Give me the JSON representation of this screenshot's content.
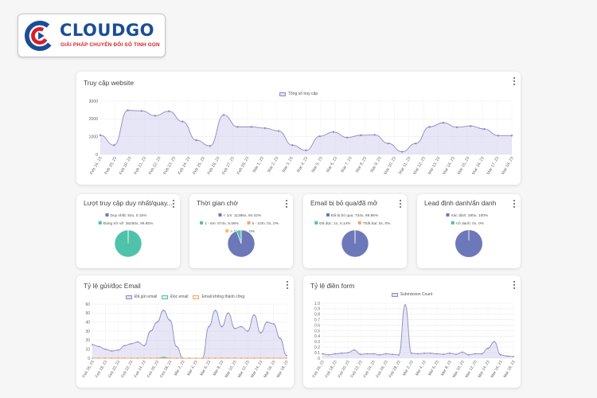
{
  "brand": {
    "name": "CLOUDGO",
    "tagline": "GIẢI PHÁP CHUYỂN ĐỔI SỐ TINH GỌN",
    "primary_color": "#1b4d96",
    "accent_color": "#d61f28"
  },
  "colors": {
    "series_fill": "rgba(200,200,234,0.55)",
    "series_line": "#8c8cc4",
    "pie_blue": "#6d78ba",
    "pie_teal": "#4fc3a9",
    "pie_orange": "#f5a86b"
  },
  "website": {
    "title": "Truy cập website",
    "menu_icon": "more-vertical-icon",
    "chart_data": {
      "type": "line",
      "title": "",
      "legend": [
        "Tổng số truy cập"
      ],
      "ylim": [
        0,
        3000
      ],
      "yticks": [
        0,
        1000,
        2000,
        3000
      ],
      "x": [
        "Feb 16, 23",
        "Feb 17, 23",
        "Feb 18, 23",
        "Feb 19, 23",
        "Feb 20, 23",
        "Feb 21, 23",
        "Feb 22, 23",
        "Feb 23, 23",
        "Feb 24, 23",
        "Feb 25, 23",
        "Feb 26, 23",
        "Feb 27, 23",
        "Feb 28, 23",
        "Mar 1, 23",
        "Mar 2, 23",
        "Mar 3, 23",
        "Mar 4, 23",
        "Mar 5, 23",
        "Mar 6, 23",
        "Mar 7, 23",
        "Mar 8, 23",
        "Mar 9, 23",
        "Mar 10, 23",
        "Mar 11, 23",
        "Mar 12, 23",
        "Mar 13, 23",
        "Mar 14, 23",
        "Mar 15, 23",
        "Mar 16, 23",
        "Mar 17, 23",
        "Mar 18, 23"
      ],
      "xticks": [
        "Feb 16, 23",
        "Feb 18, 23",
        "Feb 20, 23",
        "Feb 21, 23",
        "Feb 22, 23",
        "Feb 23, 23",
        "Feb 24, 23",
        "Feb 25, 23",
        "Feb 26, 23",
        "Feb 27, 23",
        "Feb 28, 23",
        "Mar 1, 23",
        "Mar 2, 23",
        "Mar 3, 23",
        "Mar 4, 23",
        "Mar 5, 23",
        "Mar 6, 23",
        "Mar 7, 23",
        "Mar 8, 23",
        "Mar 9, 23",
        "Mar 10, 23",
        "Mar 11, 23",
        "Mar 12, 23",
        "Mar 13, 23",
        "Mar 14, 23",
        "Mar 15, 23",
        "Mar 16, 23",
        "Mar 17, 23",
        "Mar 18, 23"
      ],
      "series": [
        {
          "name": "Tổng số truy cập",
          "values": [
            1080,
            520,
            2480,
            2450,
            2180,
            2430,
            1850,
            800,
            480,
            2220,
            1550,
            1550,
            1480,
            1320,
            520,
            230,
            1020,
            1260,
            950,
            1080,
            1100,
            620,
            150,
            620,
            1550,
            1780,
            1530,
            1600,
            1430,
            1060,
            1060
          ]
        }
      ]
    }
  },
  "summary_cards": [
    {
      "title": "Lượt truy cập duy nhất/quay...",
      "legend": [
        {
          "label": "Duy nhất: 54x, 0.15%",
          "color": "#6d78ba"
        },
        {
          "label": "Đang trở về: 36250x, 99.85%",
          "color": "#4fc3a9"
        }
      ],
      "chart_data": {
        "type": "pie",
        "labels": [
          "Duy nhất",
          "Đang trở về"
        ],
        "values": [
          54,
          36250
        ],
        "colors": [
          "#6d78ba",
          "#4fc3a9"
        ]
      }
    },
    {
      "title": "Thời gian chờ",
      "legend": [
        {
          "label": "< 1m: 11396x, 94.42%",
          "color": "#6d78ba"
        },
        {
          "label": "1 - 5m: 674x, 5.58%",
          "color": "#4fc3a9"
        },
        {
          "label": "5 - 10m: 0x, 0%",
          "color": "#f5a86b"
        },
        {
          "label": "> 10m: 0x, 0%",
          "color": "#f5c26b"
        }
      ],
      "chart_data": {
        "type": "pie",
        "labels": [
          "< 1m",
          "1 - 5m",
          "5 - 10m",
          "> 10m"
        ],
        "values": [
          11396,
          674,
          0,
          0
        ],
        "colors": [
          "#6d78ba",
          "#4fc3a9",
          "#f5a86b",
          "#f5c26b"
        ]
      }
    },
    {
      "title": "Email bị bỏ qua/đã mở",
      "legend": [
        {
          "label": "Đã bị bỏ qua: 734x, 99.86%",
          "color": "#6d78ba"
        },
        {
          "label": "Đã đọc: 1x, 0.14%",
          "color": "#4fc3a9"
        },
        {
          "label": "Thất bại: 0x, 0%",
          "color": "#f5a86b"
        }
      ],
      "chart_data": {
        "type": "pie",
        "labels": [
          "Đã bị bỏ qua",
          "Đã đọc",
          "Thất bại"
        ],
        "values": [
          734,
          1,
          0
        ],
        "colors": [
          "#6d78ba",
          "#4fc3a9",
          "#f5a86b"
        ]
      }
    },
    {
      "title": "Lead định danh/ẩn danh",
      "legend": [
        {
          "label": "Xác định: 280x, 100%",
          "color": "#6d78ba"
        },
        {
          "label": "Vô danh: 0x, 0%",
          "color": "#4fc3a9"
        }
      ],
      "chart_data": {
        "type": "pie",
        "labels": [
          "Xác định",
          "Vô danh"
        ],
        "values": [
          280,
          0
        ],
        "colors": [
          "#6d78ba",
          "#4fc3a9"
        ]
      }
    }
  ],
  "email_rate": {
    "title": "Tỷ lệ gửi/đọc Email",
    "chart_data": {
      "type": "line",
      "legend": [
        {
          "label": "Đã gửi email",
          "color": "#8c8cc4"
        },
        {
          "label": "Đọc email",
          "color": "#4fc3a9"
        },
        {
          "label": "Email không thành công",
          "color": "#f5a86b"
        }
      ],
      "ylim": [
        0,
        60
      ],
      "yticks": [
        0,
        10,
        20,
        30,
        40,
        50,
        60
      ],
      "xticks": [
        "Feb 16, 23",
        "Feb 18, 23",
        "Feb 20, 23",
        "Feb 22, 23",
        "Feb 24, 23",
        "Feb 26, 23",
        "Feb 28, 23",
        "Mar 2, 23",
        "Mar 4, 23",
        "Mar 6, 23",
        "Mar 8, 23",
        "Mar 10, 23",
        "Mar 12, 23",
        "Mar 14, 23",
        "Mar 16, 23",
        "Mar 18, 23"
      ],
      "series": [
        {
          "name": "Đã gửi email",
          "values": [
            15,
            13,
            10,
            8,
            9,
            14,
            16,
            18,
            14,
            30,
            40,
            53,
            42,
            13,
            0,
            0,
            0,
            0,
            35,
            53,
            35,
            50,
            33,
            35,
            30,
            48,
            28,
            40,
            38,
            22,
            3
          ]
        },
        {
          "name": "Đọc email",
          "values": [
            0,
            0,
            0,
            0,
            0,
            0,
            0,
            0,
            0,
            0,
            0,
            1,
            0,
            0,
            0,
            0,
            0,
            0,
            0,
            0,
            0,
            0,
            0,
            0,
            0,
            0,
            0,
            0,
            0,
            0,
            0
          ]
        },
        {
          "name": "Email không thành công",
          "values": [
            0,
            0,
            0,
            0,
            0,
            0,
            0,
            0,
            0,
            0,
            0,
            0,
            0,
            0,
            0,
            0,
            0,
            0,
            0,
            0,
            0,
            0,
            0,
            0,
            0,
            0,
            0,
            0,
            0,
            0,
            0
          ]
        }
      ]
    }
  },
  "form_rate": {
    "title": "Tỷ lệ điền form",
    "chart_data": {
      "type": "line",
      "legend": [
        {
          "label": "Submission Count",
          "color": "#8c8cc4"
        }
      ],
      "ylim": [
        0,
        1.0
      ],
      "yticks": [
        "0",
        "0.1",
        "0.2",
        "0.3",
        "0.4",
        "0.5",
        "0.6",
        "0.7",
        "0.8",
        "0.9",
        "1.0"
      ],
      "xticks": [
        "Feb 16, 23",
        "Feb 18, 23",
        "Feb 20, 23",
        "Feb 22, 23",
        "Feb 24, 23",
        "Feb 26, 23",
        "Feb 28, 23",
        "Mar 2, 23",
        "Mar 4, 23",
        "Mar 6, 23",
        "Mar 8, 23",
        "Mar 10, 23",
        "Mar 12, 23",
        "Mar 14, 23",
        "Mar 16, 23",
        "Mar 18, 23"
      ],
      "series": [
        {
          "name": "Submission Count",
          "values": [
            0.08,
            0.06,
            0.08,
            0.09,
            0.1,
            0.15,
            0.07,
            0.08,
            0.08,
            0.06,
            0.08,
            0.07,
            0.06,
            0.97,
            0.09,
            0.08,
            0.09,
            0.09,
            0.08,
            0.07,
            0.09,
            0.07,
            0.11,
            0.06,
            0.08,
            0.08,
            0.18,
            0.3,
            0.06,
            0.04,
            0.03
          ]
        }
      ]
    }
  }
}
